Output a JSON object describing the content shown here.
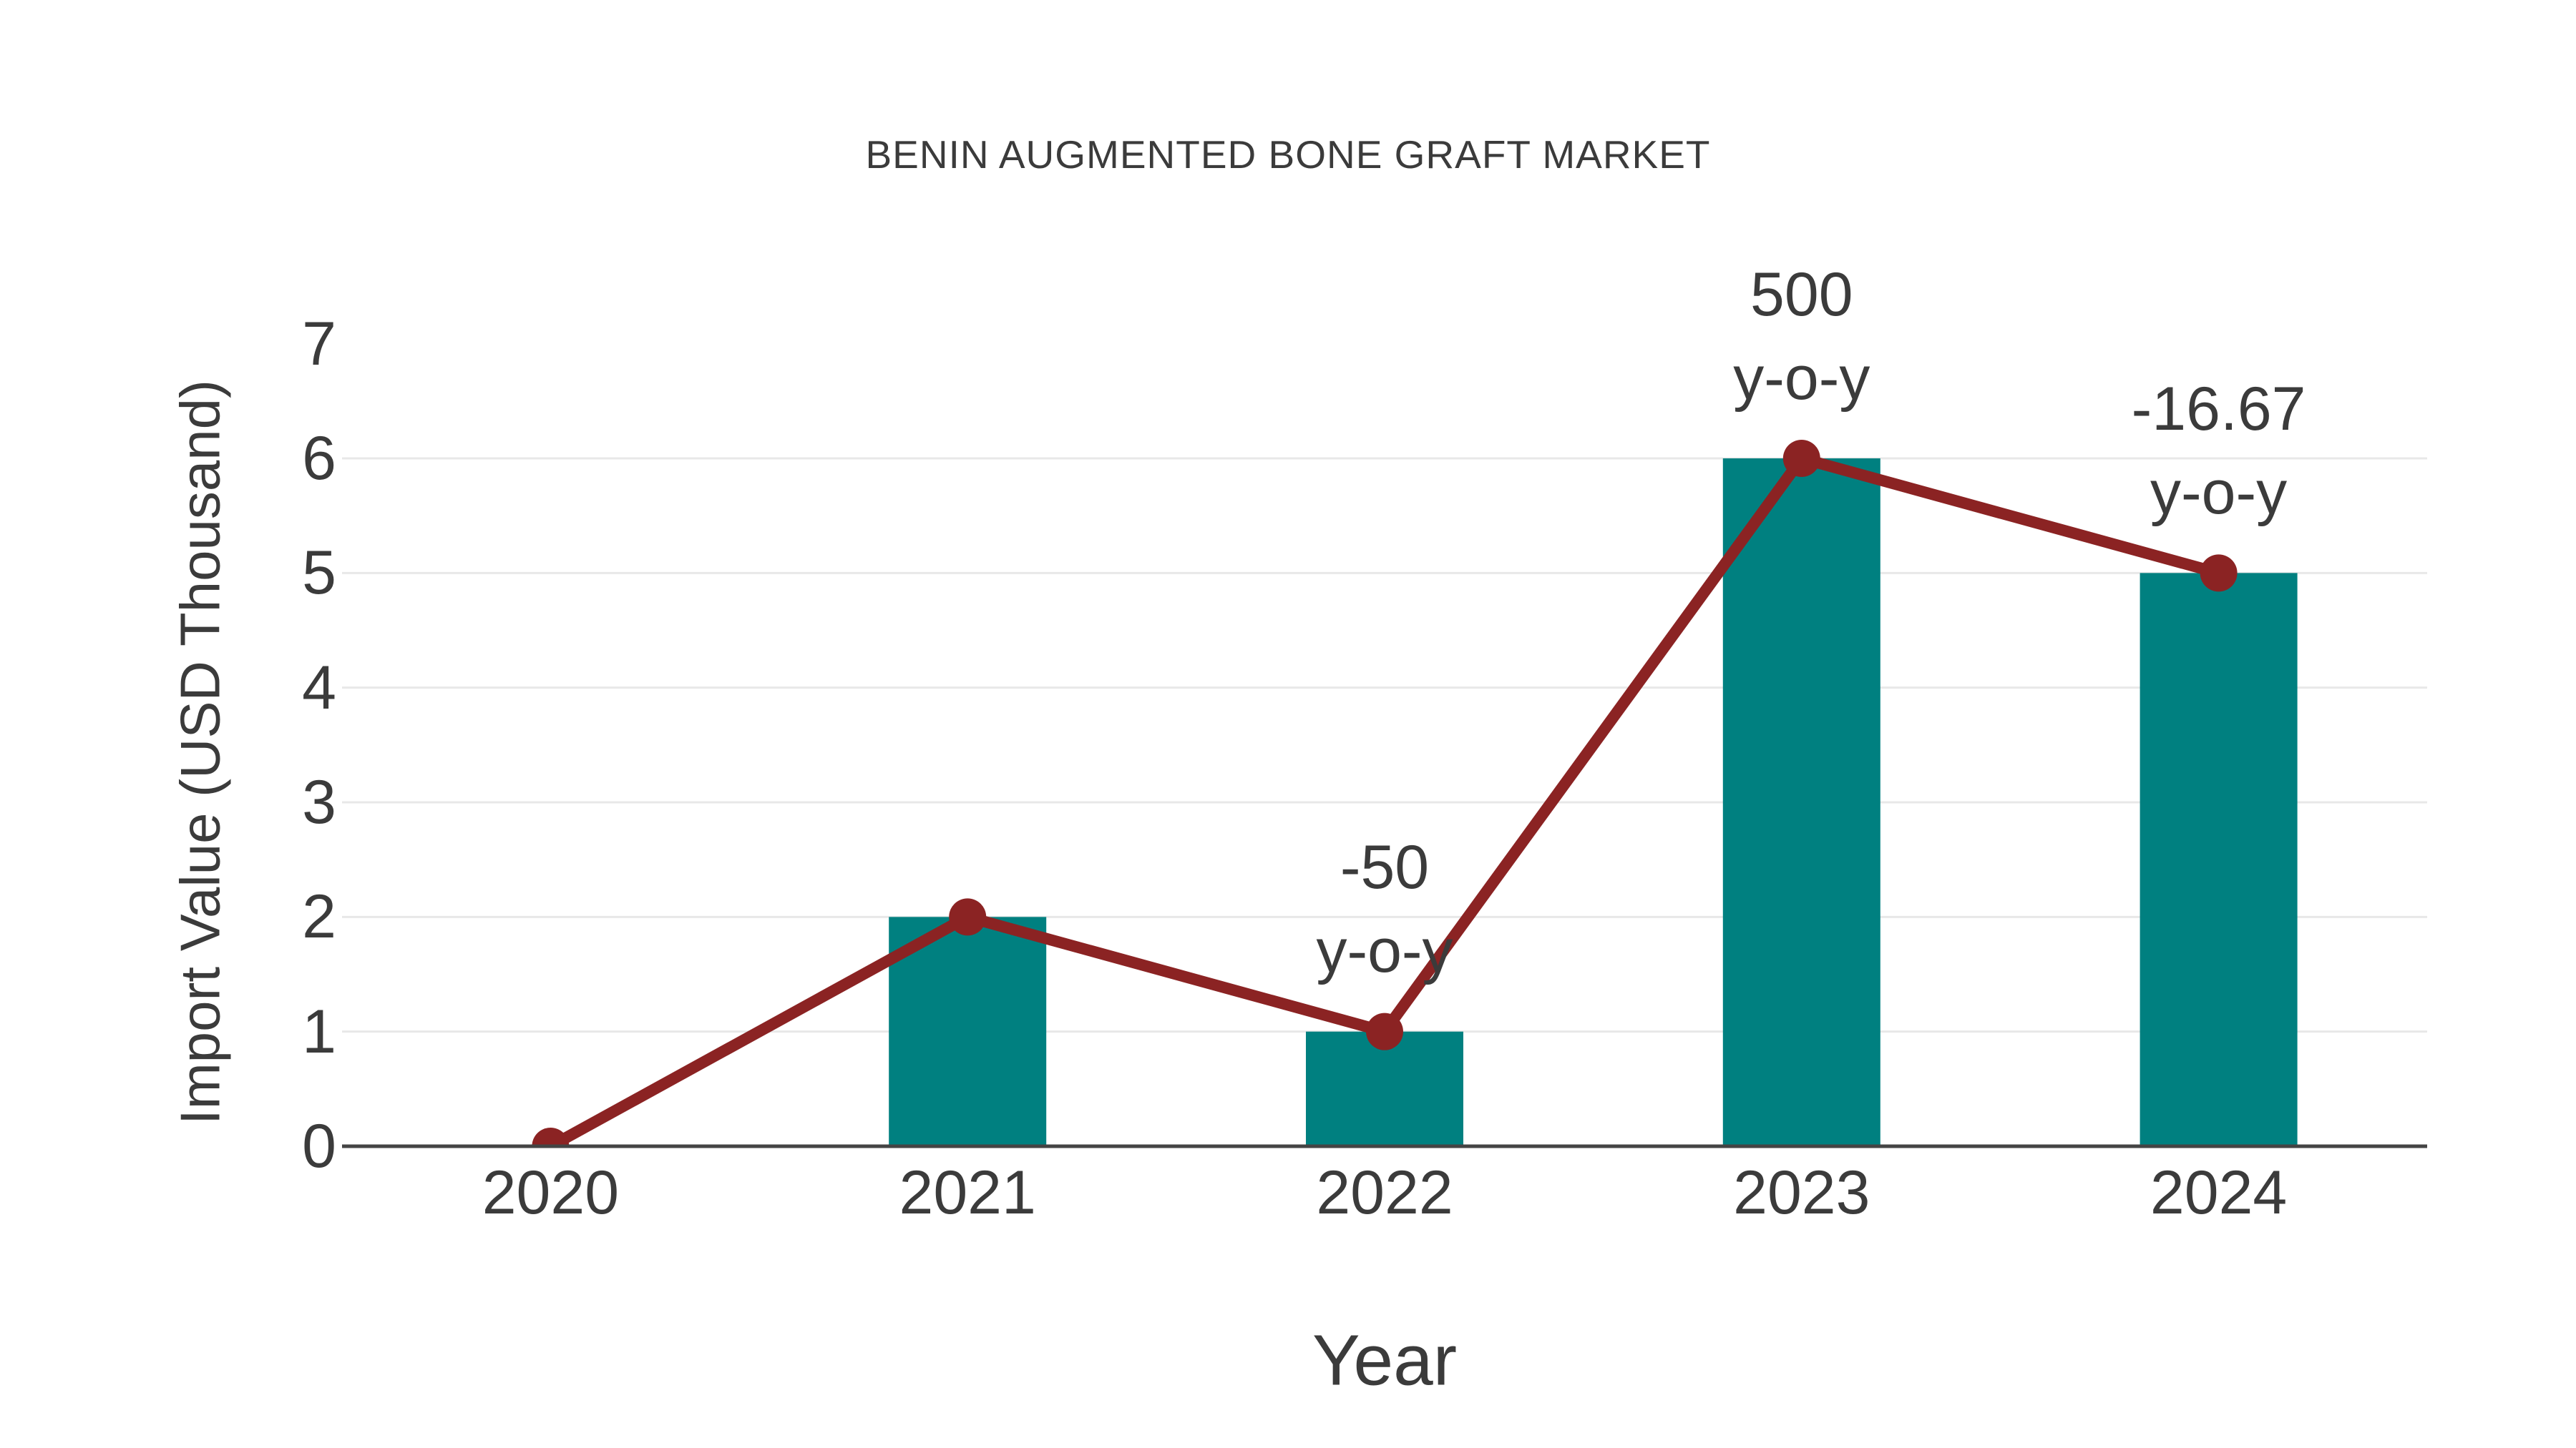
{
  "chart_data": {
    "type": "bar-line-combo",
    "title": "BENIN AUGMENTED BONE GRAFT MARKET",
    "xlabel": "Year",
    "ylabel": "Import Value (USD Thousand)",
    "categories": [
      "2020",
      "2021",
      "2022",
      "2023",
      "2024"
    ],
    "series": [
      {
        "name": "Import Value bars",
        "type": "bar",
        "color": "#008080",
        "values": [
          0,
          2,
          1,
          6,
          5
        ]
      },
      {
        "name": "Import Value trend line",
        "type": "line",
        "color": "#8b2323",
        "values": [
          0,
          2,
          1,
          6,
          5
        ]
      }
    ],
    "annotations": [
      {
        "category": "2022",
        "lines": [
          "-50",
          "y-o-y"
        ]
      },
      {
        "category": "2023",
        "lines": [
          "500",
          "y-o-y"
        ]
      },
      {
        "category": "2024",
        "lines": [
          "-16.67",
          "y-o-y"
        ]
      }
    ],
    "y_ticks": [
      0,
      1,
      2,
      3,
      4,
      5,
      6,
      7
    ],
    "y_gridlines": [
      1,
      2,
      3,
      4,
      5,
      6
    ],
    "ylim": [
      0,
      7
    ],
    "grid": "horizontal",
    "legend": "none",
    "colors": {
      "bar": "#008080",
      "line": "#8b2323",
      "marker": "#8b2323",
      "text": "#3b3b3b",
      "grid": "#e8e8e8",
      "axis_line": "#444444",
      "background": "#ffffff"
    }
  }
}
